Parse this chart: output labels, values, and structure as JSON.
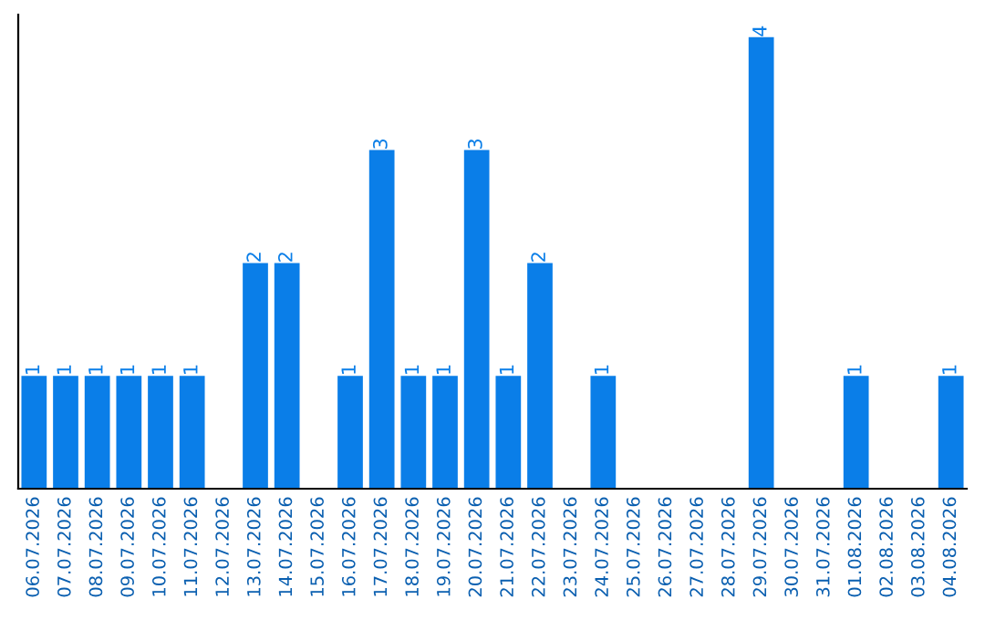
{
  "chart_data": {
    "type": "bar",
    "categories": [
      "06.07.2026",
      "07.07.2026",
      "08.07.2026",
      "09.07.2026",
      "10.07.2026",
      "11.07.2026",
      "12.07.2026",
      "13.07.2026",
      "14.07.2026",
      "15.07.2026",
      "16.07.2026",
      "17.07.2026",
      "18.07.2026",
      "19.07.2026",
      "20.07.2026",
      "21.07.2026",
      "22.07.2026",
      "23.07.2026",
      "24.07.2026",
      "25.07.2026",
      "26.07.2026",
      "27.07.2026",
      "28.07.2026",
      "29.07.2026",
      "30.07.2026",
      "31.07.2026",
      "01.08.2026",
      "02.08.2026",
      "03.08.2026",
      "04.08.2026"
    ],
    "values": [
      1,
      1,
      1,
      1,
      1,
      1,
      0,
      2,
      2,
      0,
      1,
      3,
      1,
      1,
      3,
      1,
      2,
      0,
      1,
      0,
      0,
      0,
      0,
      4,
      0,
      0,
      1,
      0,
      0,
      1
    ],
    "value_labels": [
      "1",
      "1",
      "1",
      "1",
      "1",
      "1",
      null,
      "2",
      "2",
      null,
      "1",
      "3",
      "1",
      "1",
      "3",
      "1",
      "2",
      null,
      "1",
      null,
      null,
      null,
      null,
      "4",
      null,
      null,
      "1",
      null,
      null,
      "1"
    ],
    "color": "#0a7ee8",
    "grid": false,
    "legend": false
  }
}
